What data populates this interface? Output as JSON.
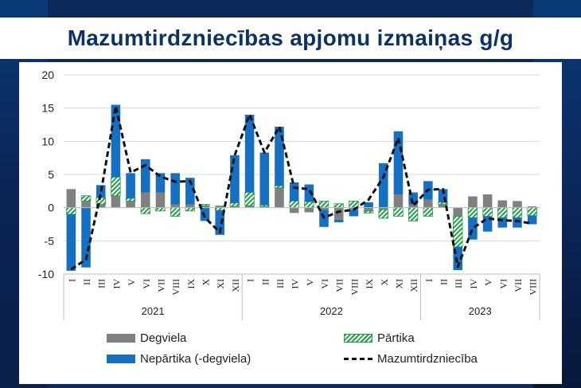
{
  "title": "Mazumtirdzniecības apjomu izmaiņas g/g",
  "legend": {
    "fuel": "Degviela",
    "food": "Pārtika",
    "nonfood": "Nepārtika (-degviela)",
    "retail": "Mazumtirdzniecība"
  },
  "colors": {
    "fuel": "#808080",
    "food": "#22a046",
    "nonfood": "#1570c4",
    "retail": "#111111",
    "background": "#0b2a5a",
    "title": "#0b3366"
  },
  "chart_data": {
    "type": "bar",
    "stacked": true,
    "ylim": [
      -10,
      20
    ],
    "yticks": [
      -10,
      -5,
      0,
      5,
      10,
      15,
      20
    ],
    "grid": true,
    "legend_position": "bottom",
    "categories": [
      "I",
      "II",
      "III",
      "IV",
      "V",
      "VI",
      "VII",
      "VIII",
      "IX",
      "X",
      "XI",
      "XII",
      "I",
      "II",
      "III",
      "IV",
      "V",
      "VI",
      "VII",
      "VIII",
      "IX",
      "X",
      "XI",
      "XII",
      "I",
      "II",
      "III",
      "IV",
      "V",
      "VI",
      "VII",
      "VIII"
    ],
    "groups": [
      {
        "label": "2021",
        "start": 0,
        "end": 11
      },
      {
        "label": "2022",
        "start": 12,
        "end": 23
      },
      {
        "label": "2023",
        "start": 24,
        "end": 31
      }
    ],
    "series": [
      {
        "name": "Degviela",
        "type": "bar",
        "values": [
          2.8,
          1.0,
          0.5,
          1.8,
          1.0,
          2.3,
          2.3,
          0.5,
          0.5,
          0.3,
          0.3,
          0.2,
          0.3,
          0.2,
          3.0,
          -0.8,
          -0.7,
          -0.3,
          -1.8,
          -0.3,
          -0.5,
          -0.3,
          2.0,
          0.5,
          1.2,
          0.5,
          -1.3,
          1.7,
          2.0,
          1.1,
          1.0,
          0.2
        ]
      },
      {
        "name": "Pārtika",
        "type": "bar",
        "values": [
          -1.0,
          0.8,
          1.0,
          2.8,
          0.4,
          -0.9,
          -0.5,
          -1.3,
          -0.5,
          0.2,
          -0.4,
          0.5,
          2.0,
          0.2,
          0.3,
          1.0,
          0.9,
          1.0,
          0.6,
          1.0,
          -0.3,
          -1.3,
          -1.3,
          -2.0,
          -1.3,
          0.3,
          -4.6,
          -1.5,
          -1.3,
          -1.5,
          -1.5,
          -1.2
        ]
      },
      {
        "name": "Nepārtika (-degviela)",
        "type": "bar",
        "values": [
          -8.5,
          -9.0,
          1.9,
          10.9,
          3.8,
          5.0,
          2.9,
          4.7,
          4.0,
          -2.0,
          -3.7,
          7.2,
          11.7,
          7.9,
          8.9,
          2.8,
          2.6,
          -2.6,
          -0.4,
          -1.0,
          0.8,
          6.7,
          9.5,
          1.8,
          2.8,
          2.0,
          -3.5,
          -3.3,
          -2.3,
          -1.5,
          -1.5,
          -1.3
        ]
      },
      {
        "name": "Mazumtirdzniecība",
        "type": "line",
        "values": [
          -9.3,
          -7.8,
          2.2,
          15.3,
          5.3,
          6.4,
          4.7,
          3.9,
          4.0,
          -1.5,
          -3.7,
          7.9,
          14.0,
          8.3,
          12.2,
          3.0,
          2.8,
          -1.5,
          -0.6,
          -0.3,
          1.2,
          4.6,
          10.5,
          0.3,
          2.7,
          2.8,
          -8.9,
          -3.1,
          -1.6,
          -1.9,
          -2.0,
          -2.4
        ]
      }
    ]
  }
}
